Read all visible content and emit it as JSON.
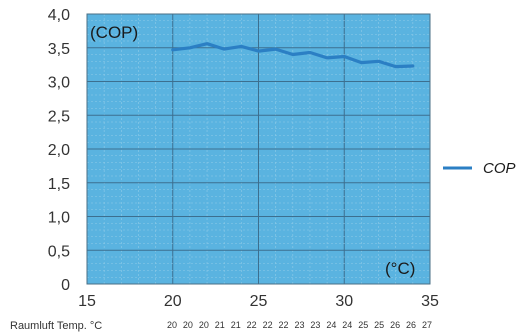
{
  "chart_data": {
    "type": "line",
    "ylabel": "(COP)",
    "xlabel": "(°C)",
    "xlim": [
      15,
      35
    ],
    "ylim": [
      0,
      4.0
    ],
    "x_ticks": [
      "15",
      "20",
      "25",
      "30",
      "35"
    ],
    "y_ticks": [
      "0",
      "0,5",
      "1,0",
      "1,5",
      "2,0",
      "2,5",
      "3,0",
      "3,5",
      "4,0"
    ],
    "grid": true,
    "legend_position": "right",
    "series": [
      {
        "name": "COP",
        "color": "#2b7fc4",
        "x": [
          20,
          21,
          22,
          23,
          24,
          25,
          26,
          27,
          28,
          29,
          30,
          31,
          32,
          33,
          34
        ],
        "y": [
          3.47,
          3.5,
          3.56,
          3.48,
          3.52,
          3.45,
          3.48,
          3.4,
          3.43,
          3.35,
          3.37,
          3.28,
          3.3,
          3.22,
          3.23
        ]
      }
    ],
    "plot_background": "#5ab3e0",
    "room_temp_label": "Raumluft Temp. °C",
    "room_temps": [
      "20",
      "20",
      "20",
      "21",
      "21",
      "22",
      "22",
      "22",
      "23",
      "23",
      "24",
      "24",
      "25",
      "25",
      "26",
      "26",
      "27"
    ]
  }
}
